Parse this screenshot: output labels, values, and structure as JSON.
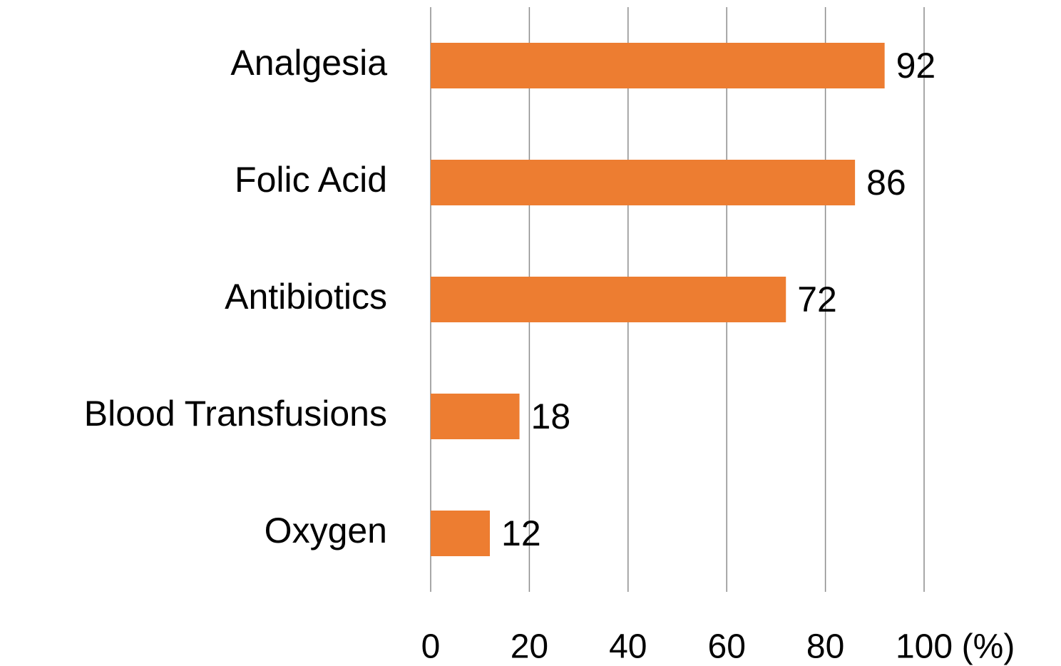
{
  "chart_data": {
    "type": "bar",
    "orientation": "horizontal",
    "categories": [
      "Analgesia",
      "Folic Acid",
      "Antibiotics",
      "Blood Transfusions",
      "Oxygen"
    ],
    "values": [
      92,
      86,
      72,
      18,
      12
    ],
    "color": "#ed7d31",
    "xlim": [
      0,
      100
    ],
    "xticks": [
      0,
      20,
      40,
      60,
      80,
      100
    ],
    "x_label": "(%)",
    "grid": true
  }
}
